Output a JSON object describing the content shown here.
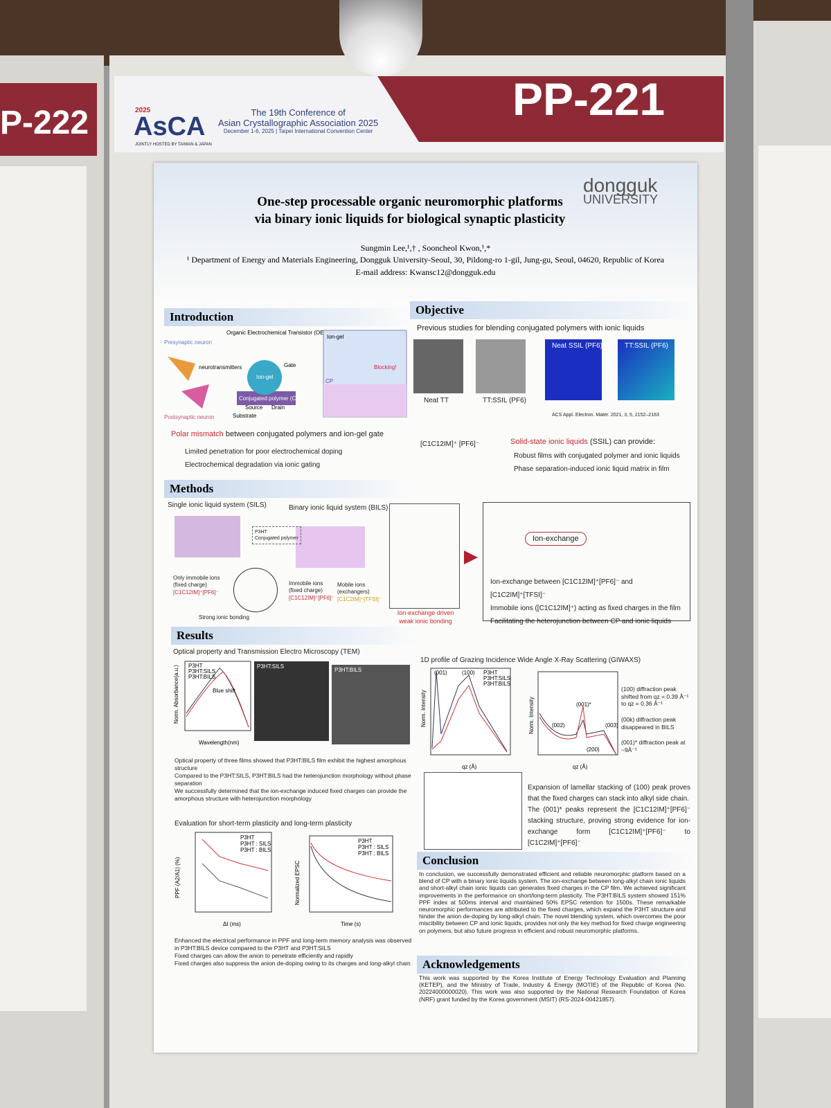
{
  "header": {
    "logo": "AsCA",
    "logo_year": "2025",
    "hosts": "JOINTLY HOSTED BY TAIWAN & JAPAN",
    "conference": [
      "The 19th Conference of",
      "Asian Crystallographic Association 2025"
    ],
    "dates": "December 1-6, 2025 | Taipei International Convention Center",
    "poster_id": "PP-221",
    "neighbor_id": "P-222"
  },
  "poster": {
    "title": [
      "One-step processable organic neuromorphic platforms",
      "via binary ionic liquids for biological synaptic plasticity"
    ],
    "university": [
      "dongguk",
      "UNIVERSITY"
    ],
    "authors": "Sungmin Lee,¹,† , Sooncheol Kwon,¹,*",
    "affiliation": "¹ Department of Energy and Materials Engineering, Dongguk University-Seoul, 30, Pildong-ro 1-gil, Jung-gu, Seoul, 04620, Republic of Korea",
    "email": "E-mail address: Kwansc12@dongguk.edu",
    "introduction": {
      "heading": "Introduction",
      "figure_labels": [
        "Presynaptic neuron",
        "Organic Electrochemical Transistor (OECT)",
        "neurotransmitters",
        "Postsynaptic neuron",
        "Ion-gel",
        "Gate",
        "Conjugated polymer (CP)",
        "Source",
        "Drain",
        "Substrate",
        "CP",
        "Blocking!"
      ],
      "polar": "Polar mismatch",
      "polar_rest": "between conjugated polymers and ion-gel gate",
      "bullets": [
        "Limited penetration for poor electrochemical doping",
        "Electrochemical degradation via ionic gating"
      ]
    },
    "objective": {
      "heading": "Objective",
      "lead": "Previous studies for blending conjugated polymers with ionic liquids",
      "image_labels": [
        "Neat TT",
        "TT:SSIL (PF6)",
        "Neat SSIL (PF6)",
        "TT:SSIL (PF6)"
      ],
      "reference": "ACS Appl. Electron. Mater. 2021, 3, 5, 2152–2163",
      "molecule": "[C1C12IM]⁺ [PF6]⁻",
      "ssil": "Solid-state ionic liquids",
      "ssil_rest": "(SSIL) can provide:",
      "bullets": [
        "Robust films with conjugated polymer and ionic liquids",
        "Phase separation-induced ionic liquid matrix in film"
      ]
    },
    "methods": {
      "heading": "Methods",
      "sils": "Single ionic liquid system (SILS)",
      "bils": "Binary ionic liquid system (BILS)",
      "labels": [
        "Only immobile ions (fixed charge)",
        "[C1C12IM]⁺[PF6]⁻",
        "Strong ionic bonding",
        "Immobile ions (fixed charge)",
        "Mobile ions (exchangers)",
        "[C1C2IM]⁺[TFSI]⁻",
        "Ion-exchange driven weak ionic bonding",
        "P3HT",
        "Conjugated polymer",
        "Ion-exchange"
      ],
      "bullets": [
        "Ion-exchange between [C1C12IM]⁺[PF6]⁻ and [C1C2IM]⁺[TFSI]⁻",
        "Immobile ions ([C1C12IM]⁺) acting as fixed charges in the film",
        "Facilitating the heterojunction between CP and ionic liquids"
      ]
    },
    "results": {
      "heading": "Results",
      "optical_title": "Optical property and Transmission Electro Microscopy (TEM)",
      "abs_ylabel": "Norm. Absorbance(a.u.)",
      "abs_xlabel": "Wavelength(nm)",
      "legend": [
        "P3HT",
        "P3HT:SILS",
        "P3HT:BILS"
      ],
      "blue_shift": "Blue shift",
      "tem": [
        "P3HT:SILS",
        "P3HT:BILS"
      ],
      "giwaxs_title": "1D profile of Grazing Incidence Wide Angle X-Ray Scattering (GIWAXS)",
      "int_label": "Norm. Intensity",
      "q_label": "qz (Å)",
      "peaks": [
        "(001)",
        "(100)",
        "(001)*",
        "(002)",
        "(003)",
        "(200)"
      ],
      "giwaxs_notes": [
        "(100) diffraction peak shifted from qz = 0.39 Å⁻¹ to qz = 0.36 Å⁻¹",
        "(00k) diffraction peak disappeared in BILS",
        "(001)* diffraction peak at ~9Å⁻¹"
      ],
      "left_notes": [
        "Optical property of three films showed that P3HT:BILS film exhibit the highest amorphous structure",
        "Compared to the P3HT:SILS, P3HT:BILS had the heterojunction morphology without phase separation",
        "We successfully determined that the ion-exchange induced fixed charges can provide the amorphous structure with heterojunction morphology"
      ],
      "plasticity_title": "Evaluation for short-term plasticity and long-term plasticity",
      "ppf_ylabel": "PPF (A2/A1) (%)",
      "ppf_xlabel": "Δt (ms)",
      "epsc_ylabel": "Normalized EPSC",
      "epsc_xlabel": "Time (s)",
      "legend2": [
        "P3HT",
        "P3HT : SILS",
        "P3HT : BILS"
      ],
      "plasticity_notes": [
        "Enhanced the electrical performance in PPF and long-term memory analysis was observed in P3HT:BILS device compared to the P3HT and P3HT:SILS",
        "Fixed charges can allow the anion to penetrate efficiently and rapidly",
        "Fixed charges also suppress the anion de-doping owing to its charges and long-alkyl chain"
      ],
      "right_notes": [
        "Expansion of lamellar stacking of (100) peak proves that the fixed charges can stack into alkyl side chain.",
        "The (001)* peaks represent the [C1C12IM]⁺[PF6]⁻ stacking structure, proving strong evidence for ion-exchange form [C1C12IM]⁺[PF6]⁻ to [C1C2IM]⁺[PF6]⁻"
      ]
    },
    "conclusion": {
      "heading": "Conclusion",
      "text": "In conclusion, we successfully demonstrated efficient and reliable neuromorphic platform based on a blend of CP with a binary ionic liquids system. The ion-exchange between long-alkyl chain ionic liquids and short-alkyl chain ionic liquids can generates fixed charges in the CP film. We achieved significant improvements in the performance on short/long-term plasticity. The P3HT:BILS system showed 151% PPF index at 500ms interval and maintained 50% EPSC retention for 1500s. These remarkable neuromorphic performances are attributed to the fixed charges, which expand the P3HT structure and hinder the anion de-doping by long-alkyl chain. The novel blending system, which overcomes the poor miscibility between CP and ionic liquids, provides not only the key method for fixed charge engineering on polymers, but also future progress in efficient and robust neuromorphic platforms."
    },
    "acknowledgements": {
      "heading": "Acknowledgements",
      "text": "This work was supported by the Korea Institute of Energy Technology Evaluation and Planning (KETEP), and the Ministry of Trade, Industry & Energy (MOTIE) of the Republic of Korea (No. 20224000000020). This work was also supported by the National Research Foundation of Korea (NRF) grant funded by the Korea government (MSIT) (RS-2024-00421857)."
    }
  }
}
